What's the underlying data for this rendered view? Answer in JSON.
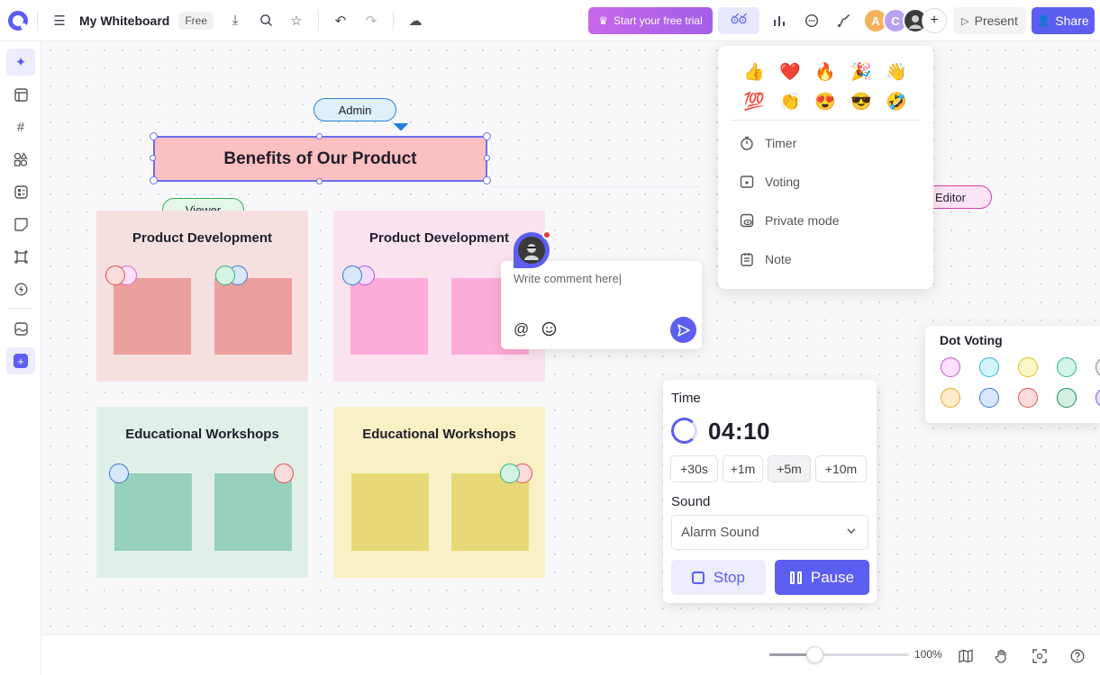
{
  "header": {
    "board_title": "My Whiteboard",
    "plan_badge": "Free",
    "trial_label": "Start your free trial",
    "present_label": "Present",
    "share_label": "Share",
    "avatars": [
      {
        "initial": "A",
        "color": "#f5b25a"
      },
      {
        "initial": "C",
        "color": "#b9a3f0"
      }
    ]
  },
  "canvas": {
    "title": "Benefits of Our Product",
    "tags": {
      "admin": "Admin",
      "viewer": "Viewer",
      "editor": "Editor"
    },
    "sections": [
      {
        "title": "Product Development",
        "bg": "#f6e0df",
        "note": "#eba09d"
      },
      {
        "title": "Product Development",
        "bg": "#fbe2ef",
        "note": "#fdabd9"
      },
      {
        "title": "Educational Workshops",
        "bg": "#e0efe8",
        "note": "#97d1be"
      },
      {
        "title": "Educational Workshops",
        "bg": "#f8f1c5",
        "note": "#e7d877"
      }
    ]
  },
  "reactions_menu": {
    "emojis": [
      "👍",
      "❤️",
      "🔥",
      "🎉",
      "👋",
      "💯",
      "👏",
      "😍",
      "😎",
      "🤣"
    ],
    "items": [
      {
        "label": "Timer",
        "icon": "timer-icon"
      },
      {
        "label": "Voting",
        "icon": "voting-icon"
      },
      {
        "label": "Private mode",
        "icon": "private-mode-icon"
      },
      {
        "label": "Note",
        "icon": "note-icon"
      }
    ]
  },
  "comment": {
    "placeholder": "Write comment here|"
  },
  "timer": {
    "time_label": "Time",
    "value": "04:10",
    "increments": [
      "+30s",
      "+1m",
      "+5m",
      "+10m"
    ],
    "sound_label": "Sound",
    "sound_value": "Alarm Sound",
    "stop_label": "Stop",
    "pause_label": "Pause"
  },
  "dot_voting": {
    "title": "Dot Voting"
  },
  "footer": {
    "zoom_label": "100%",
    "zoom_level": 0.33
  }
}
